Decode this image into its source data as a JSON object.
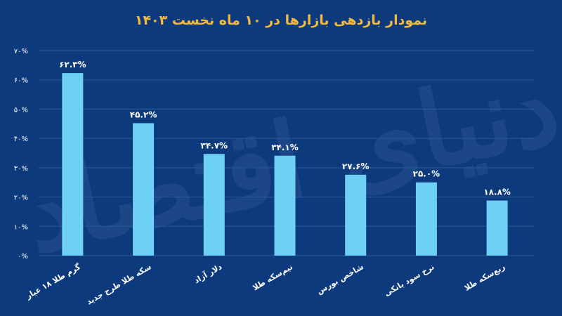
{
  "chart_data": {
    "type": "bar",
    "title": "نمودار بازدهی بازارها در ۱۰ ماه نخست ۱۴۰۳",
    "categories": [
      "گرم طلا ۱۸ عیار",
      "سکه طلا طرح جدید",
      "دلار آزاد",
      "نیم‌سکه طلا",
      "شاخص بورس",
      "نرخ سود بانکی",
      "ربع‌سکه طلا"
    ],
    "values": [
      62.3,
      45.2,
      34.7,
      34.1,
      27.6,
      25.0,
      18.8
    ],
    "value_labels": [
      "۶۲.۳%",
      "۴۵.۲%",
      "۳۴.۷%",
      "۳۴.۱%",
      "۲۷.۶%",
      "۲۵.۰%",
      "۱۸.۸%"
    ],
    "ylim": [
      0,
      70
    ],
    "yticks": [
      0,
      10,
      20,
      30,
      40,
      50,
      60,
      70
    ],
    "ytick_labels": [
      "۰%",
      "۱۰%",
      "۲۰%",
      "۳۰%",
      "۴۰%",
      "۵۰%",
      "۶۰%",
      "۷۰%"
    ],
    "grid": true,
    "bar_color": "#6fd0f5",
    "background_color": "#0d3a7d",
    "title_color": "#f2b93b",
    "watermark": "دنیای اقتصاد"
  }
}
